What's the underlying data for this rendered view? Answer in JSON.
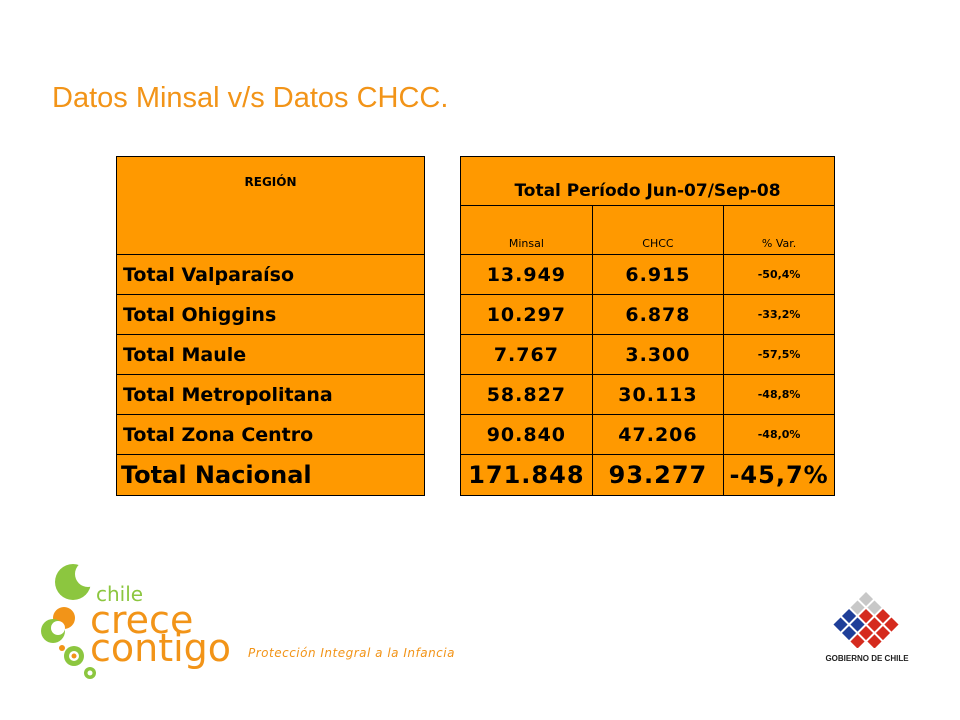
{
  "title": "Datos Minsal v/s Datos CHCC.",
  "table": {
    "region_header": "REGIÓN",
    "period_header": "Total Período Jun-07/Sep-08",
    "columns": [
      "Minsal",
      "CHCC",
      "% Var."
    ],
    "rows": [
      {
        "region": "Total Valparaíso",
        "minsal": "13.949",
        "chcc": "6.915",
        "var": "-50,4%"
      },
      {
        "region": "Total Ohiggins",
        "minsal": "10.297",
        "chcc": "6.878",
        "var": "-33,2%"
      },
      {
        "region": "Total Maule",
        "minsal": "7.767",
        "chcc": "3.300",
        "var": "-57,5%"
      },
      {
        "region": "Total Metropolitana",
        "minsal": "58.827",
        "chcc": "30.113",
        "var": "-48,8%"
      },
      {
        "region": "Total Zona Centro",
        "minsal": "90.840",
        "chcc": "47.206",
        "var": "-48,0%"
      }
    ],
    "total": {
      "region": "Total Nacional",
      "minsal": "171.848",
      "chcc": "93.277",
      "var": "-45,7%"
    },
    "fill_color": "#ff9900"
  },
  "footer": {
    "logo_line1": "chile",
    "logo_line2": "crece",
    "logo_line3": "contigo",
    "tagline": "Protección Integral a la Infancia",
    "gov_label": "GOBIERNO DE CHILE"
  }
}
